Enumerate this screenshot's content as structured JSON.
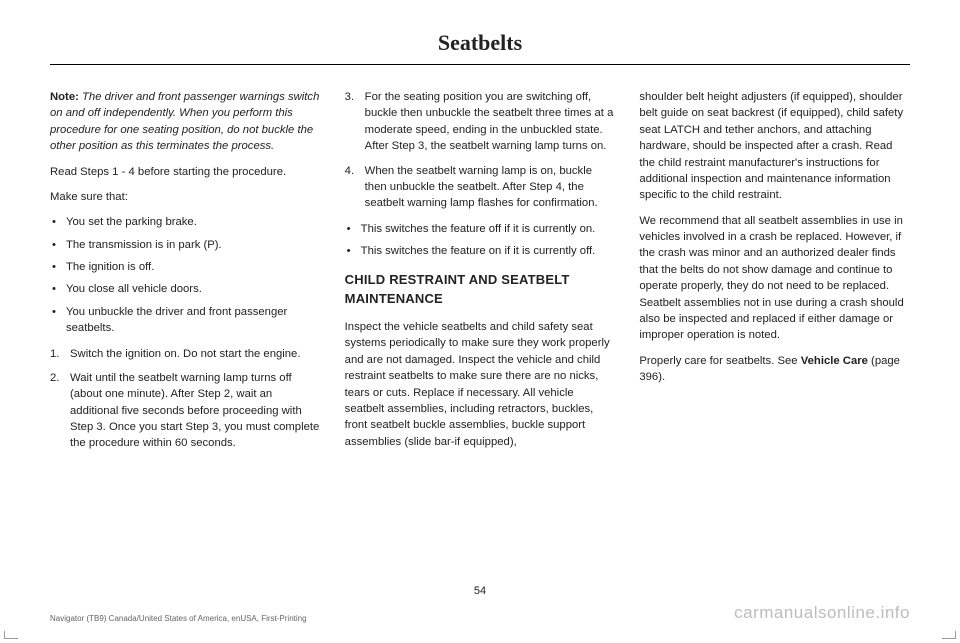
{
  "header": "Seatbelts",
  "page_number": "54",
  "footer_left": "Navigator (TB9) Canada/United States of America, enUSA, First-Printing",
  "footer_right": "carmanualsonline.info",
  "col1": {
    "note_label": "Note:",
    "note_text": " The driver and front passenger warnings switch on and off independently. When you perform this procedure for one seating position, do not buckle the other position as this terminates the process.",
    "read_steps": "Read Steps 1 - 4 before starting the procedure.",
    "make_sure": "Make sure that:",
    "bullets": [
      "You set the parking brake.",
      "The transmission is in park (P).",
      "The ignition is off.",
      "You close all vehicle doors.",
      "You unbuckle the driver and front passenger seatbelts."
    ],
    "steps": [
      {
        "n": "1.",
        "t": "Switch the ignition on.  Do not start the engine."
      },
      {
        "n": "2.",
        "t": "Wait until the seatbelt warning lamp turns off (about one minute). After Step 2, wait an additional five seconds before proceeding with Step 3. Once you start Step 3, you must complete the procedure within 60 seconds."
      }
    ]
  },
  "col2": {
    "steps": [
      {
        "n": "3.",
        "t": "For the seating position you are switching off, buckle then unbuckle the seatbelt three times at a moderate speed, ending in the unbuckled state. After Step 3, the seatbelt warning lamp turns on."
      },
      {
        "n": "4.",
        "t": "When the seatbelt warning lamp is on, buckle then unbuckle the seatbelt. After Step 4, the seatbelt warning lamp flashes for confirmation."
      }
    ],
    "sub_bullets": [
      "This switches the feature off if it is currently on.",
      "This switches the feature on if it is currently off."
    ],
    "heading": "CHILD RESTRAINT AND SEATBELT MAINTENANCE",
    "para": "Inspect the vehicle seatbelts and child safety seat systems periodically to make sure they work properly and are not damaged. Inspect the vehicle and child restraint seatbelts to make sure there are no nicks, tears or cuts. Replace if necessary. All vehicle seatbelt assemblies, including retractors, buckles, front seatbelt buckle assemblies, buckle support assemblies (slide bar-if equipped),"
  },
  "col3": {
    "para1": "shoulder belt height adjusters (if equipped), shoulder belt guide on seat backrest (if equipped), child safety seat LATCH and tether anchors, and attaching hardware, should be inspected after a crash. Read the child restraint manufacturer's instructions for additional inspection and maintenance information specific to the child restraint.",
    "para2": "We recommend that all seatbelt assemblies in use in vehicles involved in a crash be replaced. However, if the crash was minor and an authorized dealer finds that the belts do not show damage and continue to operate properly, they do not need to be replaced. Seatbelt assemblies not in use during a crash should also be inspected and replaced if either damage or improper operation is noted.",
    "para3_a": "Properly care for seatbelts.  See ",
    "para3_b": "Vehicle Care",
    "para3_c": " (page 396)."
  }
}
